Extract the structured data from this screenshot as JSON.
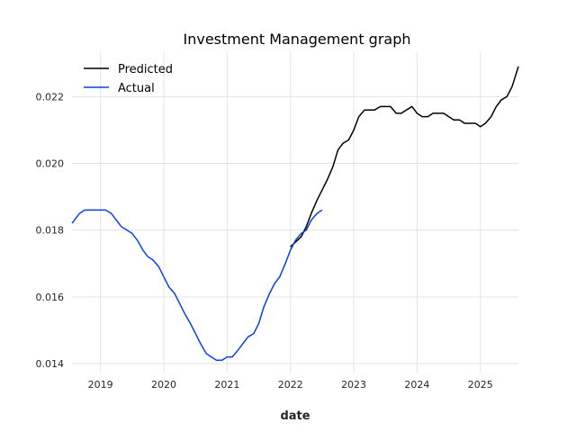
{
  "chart_data": {
    "type": "line",
    "title": "Investment Management graph",
    "xlabel": "date",
    "ylabel": "",
    "xlim": [
      2018.55,
      2025.6
    ],
    "ylim": [
      0.01373,
      0.02333
    ],
    "x_ticks": [
      "2019",
      "2020",
      "2021",
      "2022",
      "2023",
      "2024",
      "2025"
    ],
    "y_ticks": [
      "0.014",
      "0.016",
      "0.018",
      "0.020",
      "0.022"
    ],
    "grid": true,
    "legend_position": "top-left",
    "series": [
      {
        "name": "Predicted",
        "color": "#000000",
        "points": [
          [
            2022.0,
            0.0175
          ],
          [
            2022.17,
            0.0178
          ],
          [
            2022.25,
            0.0181
          ],
          [
            2022.33,
            0.0185
          ],
          [
            2022.42,
            0.0189
          ],
          [
            2022.5,
            0.0192
          ],
          [
            2022.58,
            0.0195
          ],
          [
            2022.67,
            0.0199
          ],
          [
            2022.75,
            0.0204
          ],
          [
            2022.83,
            0.0206
          ],
          [
            2022.92,
            0.0207
          ],
          [
            2023.0,
            0.021
          ],
          [
            2023.08,
            0.0214
          ],
          [
            2023.17,
            0.0216
          ],
          [
            2023.33,
            0.0216
          ],
          [
            2023.42,
            0.0217
          ],
          [
            2023.5,
            0.0217
          ],
          [
            2023.58,
            0.0217
          ],
          [
            2023.67,
            0.0215
          ],
          [
            2023.75,
            0.0215
          ],
          [
            2023.83,
            0.0216
          ],
          [
            2023.92,
            0.0217
          ],
          [
            2024.0,
            0.0215
          ],
          [
            2024.08,
            0.0214
          ],
          [
            2024.17,
            0.0214
          ],
          [
            2024.25,
            0.0215
          ],
          [
            2024.33,
            0.0215
          ],
          [
            2024.42,
            0.0215
          ],
          [
            2024.5,
            0.0214
          ],
          [
            2024.58,
            0.0213
          ],
          [
            2024.67,
            0.0213
          ],
          [
            2024.75,
            0.0212
          ],
          [
            2024.83,
            0.0212
          ],
          [
            2024.92,
            0.0212
          ],
          [
            2025.0,
            0.0211
          ],
          [
            2025.08,
            0.0212
          ],
          [
            2025.17,
            0.0214
          ],
          [
            2025.25,
            0.0217
          ],
          [
            2025.33,
            0.0219
          ],
          [
            2025.42,
            0.022
          ],
          [
            2025.5,
            0.0223
          ],
          [
            2025.6,
            0.0229
          ]
        ]
      },
      {
        "name": "Actual",
        "color": "#0a41e6",
        "points": [
          [
            2018.55,
            0.0182
          ],
          [
            2018.67,
            0.0185
          ],
          [
            2018.75,
            0.0186
          ],
          [
            2018.83,
            0.0186
          ],
          [
            2018.92,
            0.0186
          ],
          [
            2019.0,
            0.0186
          ],
          [
            2019.08,
            0.0186
          ],
          [
            2019.17,
            0.0185
          ],
          [
            2019.25,
            0.0183
          ],
          [
            2019.33,
            0.0181
          ],
          [
            2019.42,
            0.018
          ],
          [
            2019.5,
            0.0179
          ],
          [
            2019.58,
            0.0177
          ],
          [
            2019.67,
            0.0174
          ],
          [
            2019.75,
            0.0172
          ],
          [
            2019.83,
            0.0171
          ],
          [
            2019.92,
            0.0169
          ],
          [
            2020.0,
            0.0166
          ],
          [
            2020.08,
            0.0163
          ],
          [
            2020.17,
            0.0161
          ],
          [
            2020.25,
            0.0158
          ],
          [
            2020.33,
            0.0155
          ],
          [
            2020.42,
            0.0152
          ],
          [
            2020.5,
            0.0149
          ],
          [
            2020.58,
            0.0146
          ],
          [
            2020.67,
            0.0143
          ],
          [
            2020.75,
            0.0142
          ],
          [
            2020.83,
            0.0141
          ],
          [
            2020.92,
            0.0141
          ],
          [
            2021.0,
            0.0142
          ],
          [
            2021.08,
            0.0142
          ],
          [
            2021.17,
            0.0144
          ],
          [
            2021.25,
            0.0146
          ],
          [
            2021.33,
            0.0148
          ],
          [
            2021.42,
            0.0149
          ],
          [
            2021.5,
            0.0152
          ],
          [
            2021.58,
            0.0157
          ],
          [
            2021.67,
            0.0161
          ],
          [
            2021.75,
            0.0164
          ],
          [
            2021.83,
            0.0166
          ],
          [
            2021.92,
            0.017
          ],
          [
            2022.0,
            0.0174
          ],
          [
            2022.08,
            0.0177
          ],
          [
            2022.17,
            0.0179
          ],
          [
            2022.25,
            0.018
          ],
          [
            2022.33,
            0.0183
          ],
          [
            2022.42,
            0.0185
          ],
          [
            2022.5,
            0.0186
          ]
        ]
      }
    ]
  }
}
